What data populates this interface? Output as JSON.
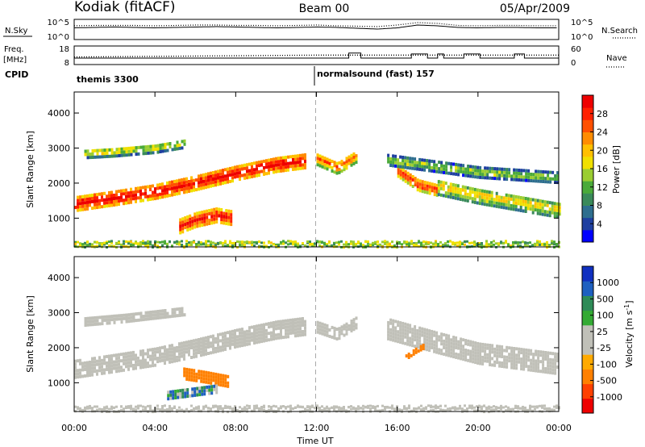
{
  "header": {
    "station": "Kodiak (fitACF)",
    "beam": "Beam 00",
    "date": "05/Apr/2009"
  },
  "side_labels": {
    "nsky": "N.Sky",
    "nsearch": "N.Search",
    "freq": "Freq.",
    "freq_unit": "[MHz]",
    "nave": "Nave",
    "cpid": "CPID"
  },
  "noise_axis": {
    "ticks_left": [
      "10^5",
      "10^0"
    ],
    "ticks_right": [
      "10^5",
      "10^0"
    ]
  },
  "freq_axis": {
    "ticks_left": [
      "18",
      "8"
    ],
    "ticks_right": [
      "60",
      "0"
    ]
  },
  "cpid_segments": [
    {
      "label": "themis 3300",
      "start_hour": 0
    },
    {
      "label": "normalsound (fast) 157",
      "start_hour": 12
    }
  ],
  "colorbars": {
    "power": {
      "title": "Power [dB]",
      "ticks": [
        "28",
        "24",
        "20",
        "16",
        "12",
        "8",
        "4"
      ],
      "colors": [
        "#0000ff",
        "#1e3fa0",
        "#2e6e8e",
        "#3a8a5a",
        "#4aaa3a",
        "#9acd32",
        "#f0e000",
        "#ffc000",
        "#ff8c00",
        "#ff5000",
        "#ff2000",
        "#ee0000"
      ]
    },
    "velocity": {
      "title": "Velocity [m s^-1]",
      "ticks": [
        "1000",
        "500",
        "100",
        "25",
        "-25",
        "-100",
        "-500",
        "-1000"
      ],
      "colors": [
        "#ee0000",
        "#ff4000",
        "#ff8000",
        "#ffaa00",
        "#c0c0b8",
        "#c0c0b8",
        "#33aa33",
        "#2e8b57",
        "#1e60c0",
        "#1030c0"
      ]
    }
  },
  "chart_data": [
    {
      "type": "line",
      "name": "noise_panel",
      "series": [
        {
          "name": "N.Sky",
          "style": "solid",
          "x": [
            0,
            1,
            2,
            3,
            4,
            5,
            6,
            7,
            8,
            9,
            10,
            11,
            12,
            13,
            14,
            15,
            16,
            17,
            18,
            19,
            20,
            21,
            22,
            23,
            24
          ],
          "y": [
            2.9,
            3.0,
            3.1,
            3.0,
            2.9,
            3.0,
            3.1,
            3.2,
            3.1,
            3.0,
            2.9,
            3.0,
            3.1,
            3.0,
            2.8,
            2.6,
            2.9,
            3.6,
            3.4,
            3.0,
            2.9,
            3.0,
            3.0,
            2.9,
            2.9
          ]
        },
        {
          "name": "N.Search",
          "style": "dotted",
          "x": [
            0,
            1,
            2,
            3,
            4,
            5,
            6,
            7,
            8,
            9,
            10,
            11,
            12,
            13,
            14,
            15,
            16,
            17,
            18,
            19,
            20,
            21,
            22,
            23,
            24
          ],
          "y": [
            3.4,
            3.5,
            3.5,
            3.5,
            3.4,
            3.5,
            3.6,
            3.6,
            3.5,
            3.5,
            3.4,
            3.5,
            3.6,
            3.4,
            3.3,
            3.2,
            3.6,
            4.2,
            4.0,
            3.5,
            3.4,
            3.5,
            3.5,
            3.4,
            3.4
          ]
        }
      ]
    },
    {
      "type": "line",
      "name": "freq_nave_panel",
      "series": [
        {
          "name": "Freq. [MHz]",
          "style": "solid",
          "x": [
            0,
            12,
            13.6,
            13.6,
            14.2,
            14.2,
            16.7,
            16.7,
            17.5,
            17.5,
            18.0,
            18.0,
            18.3,
            18.3,
            19.3,
            19.3,
            20.1,
            20.1,
            21.8,
            21.8,
            22.3,
            22.3,
            24
          ],
          "y": [
            11.5,
            11.5,
            11.5,
            14.2,
            14.2,
            11.5,
            11.5,
            13.7,
            13.7,
            11.5,
            11.5,
            13.7,
            13.7,
            11.5,
            11.5,
            13.7,
            13.7,
            11.5,
            11.5,
            13.7,
            13.7,
            11.5,
            11.5
          ]
        },
        {
          "name": "Nave",
          "style": "dotted",
          "x": [
            0,
            12,
            24
          ],
          "y": [
            12.1,
            13.1,
            13.1
          ]
        }
      ]
    },
    {
      "type": "heatmap",
      "name": "power",
      "title": "",
      "xlabel": "",
      "ylabel": "Slant Range [km]",
      "x_ticks": [
        "00:00",
        "04:00",
        "08:00",
        "12:00",
        "16:00",
        "20:00",
        "00:00"
      ],
      "y_ticks": [
        1000,
        2000,
        3000,
        4000
      ],
      "xlim": [
        0,
        24
      ],
      "ylim": [
        180,
        4600
      ],
      "regions": [
        {
          "x": [
            0,
            2,
            4,
            6,
            8,
            10,
            11.5
          ],
          "range_center": [
            1450,
            1620,
            1800,
            2050,
            2330,
            2570,
            2680
          ],
          "width_km": 380,
          "power_db": 25
        },
        {
          "x": [
            5.2,
            6,
            7,
            7.8
          ],
          "range_center": [
            820,
            1000,
            1130,
            1050
          ],
          "width_km": 380,
          "power_db": 24
        },
        {
          "x": [
            0.5,
            2,
            4,
            5.5
          ],
          "range_center": [
            2900,
            2950,
            3050,
            3200
          ],
          "width_km": 260,
          "power_db": 13
        },
        {
          "x": [
            12,
            13,
            14
          ],
          "range_center": [
            2750,
            2500,
            2850
          ],
          "width_km": 360,
          "power_db": 19
        },
        {
          "x": [
            16,
            17,
            18
          ],
          "range_center": [
            2400,
            2000,
            1850
          ],
          "width_km": 320,
          "power_db": 22
        },
        {
          "x": [
            18,
            20,
            22,
            24
          ],
          "range_center": [
            1950,
            1700,
            1500,
            1300
          ],
          "width_km": 460,
          "power_db": 14
        },
        {
          "x": [
            15.5,
            20,
            24
          ],
          "range_center": [
            2700,
            2350,
            2200
          ],
          "width_km": 280,
          "power_db": 11
        }
      ]
    },
    {
      "type": "heatmap",
      "name": "velocity",
      "title": "",
      "xlabel": "Time UT",
      "ylabel": "Slant Range [km]",
      "x_ticks": [
        "00:00",
        "04:00",
        "08:00",
        "12:00",
        "16:00",
        "20:00",
        "00:00"
      ],
      "y_ticks": [
        1000,
        2000,
        3000,
        4000
      ],
      "xlim": [
        0,
        24
      ],
      "ylim": [
        180,
        4600
      ],
      "regions": [
        {
          "x": [
            0,
            2,
            4,
            6,
            8,
            10,
            11.5
          ],
          "range_center": [
            1450,
            1620,
            1800,
            2050,
            2330,
            2570,
            2680
          ],
          "width_km": 500,
          "velocity": 0
        },
        {
          "x": [
            5.4,
            6.5,
            7.6
          ],
          "range_center": [
            1300,
            1200,
            1080
          ],
          "width_km": 280,
          "velocity": -300
        },
        {
          "x": [
            4.6,
            5.4,
            6.2,
            7.0
          ],
          "range_center": [
            700,
            760,
            820,
            880
          ],
          "width_km": 220,
          "velocity": 80
        },
        {
          "x": [
            0.5,
            2.5,
            5.5
          ],
          "range_center": [
            2800,
            2900,
            3100
          ],
          "width_km": 220,
          "velocity": -10
        },
        {
          "x": [
            12,
            13,
            14
          ],
          "range_center": [
            2650,
            2450,
            2800
          ],
          "width_km": 320,
          "velocity": 0
        },
        {
          "x": [
            15.5,
            18,
            20,
            24
          ],
          "range_center": [
            2600,
            2200,
            1900,
            1600
          ],
          "width_km": 600,
          "velocity": 0
        },
        {
          "x": [
            16.4,
            16.9,
            17.3
          ],
          "range_center": [
            1800,
            2000,
            2120
          ],
          "width_km": 160,
          "velocity": -400
        }
      ]
    }
  ]
}
